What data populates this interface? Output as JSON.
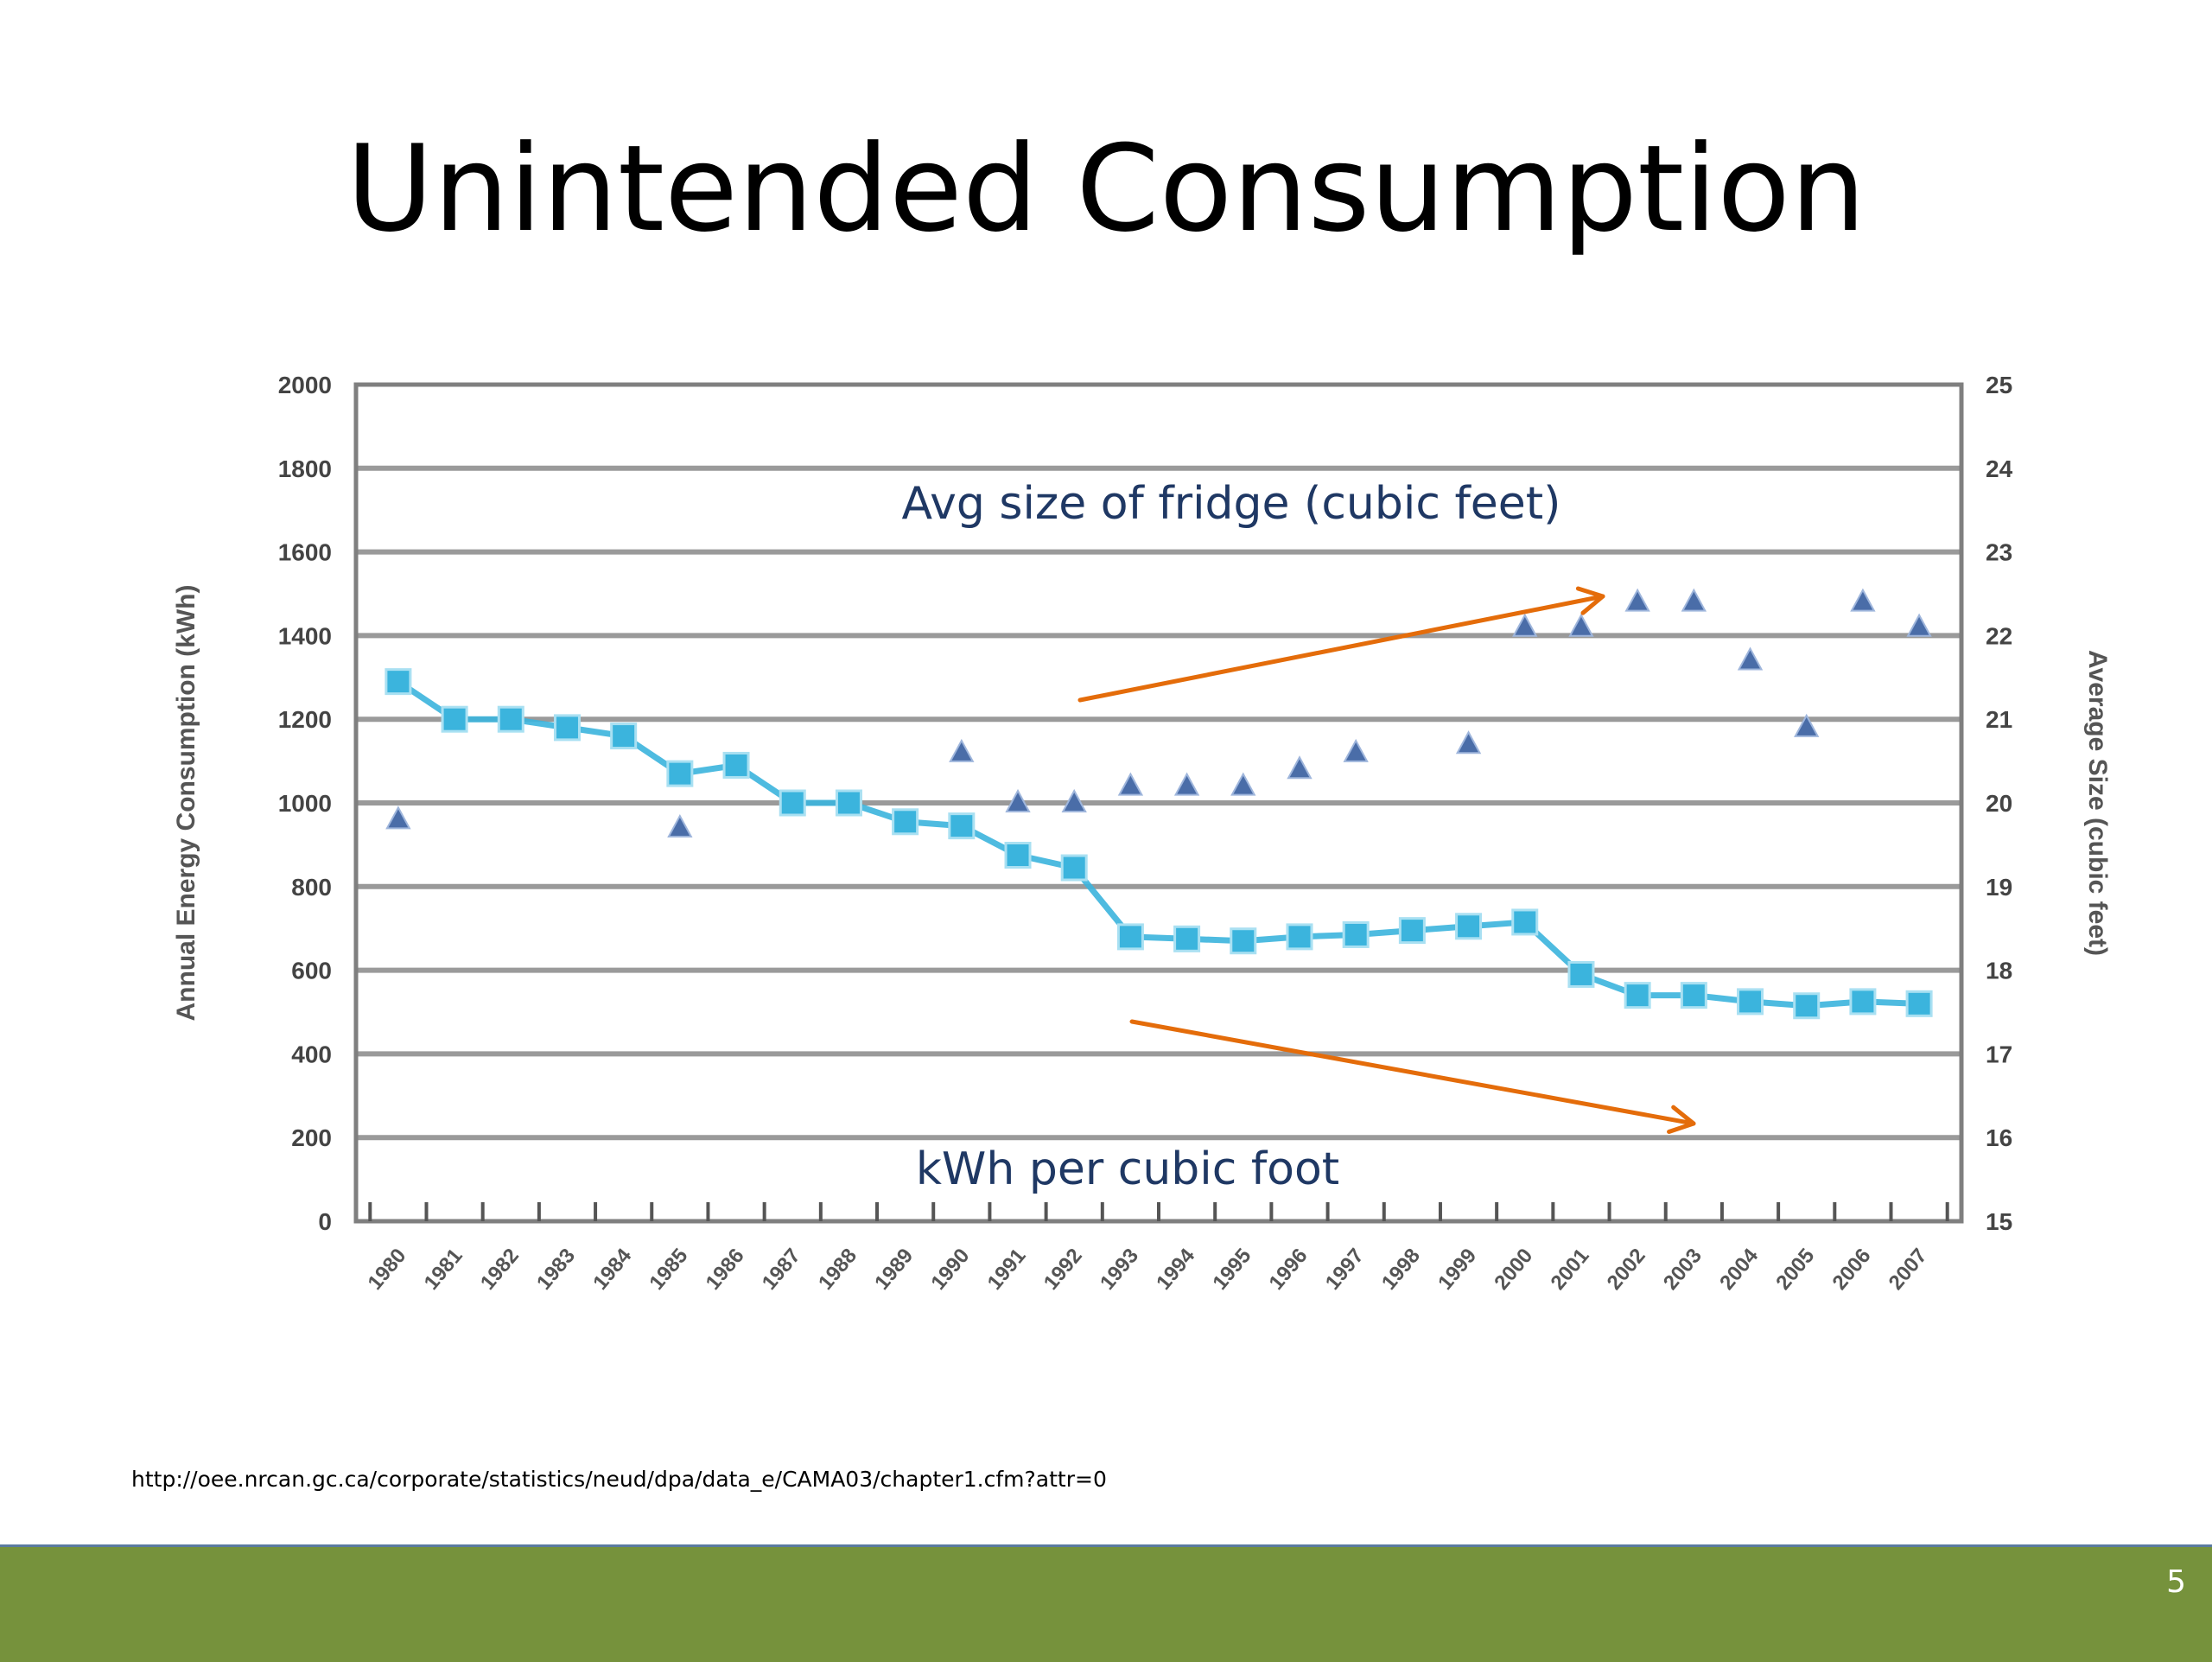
{
  "slide": {
    "title": "Unintended Consumption",
    "source": "http://oee.nrcan.gc.ca/corporate/statistics/neud/dpa/data_e/CAMA03/chapter1.cfm?attr=0",
    "page_number": "5"
  },
  "colors": {
    "footer": "#76923c",
    "kwh_series": "#3bb4dd",
    "size_series": "#4a6da8",
    "arrows": "#e46c0a",
    "annotation_text": "#1f3864",
    "grid": "#9a9a9a"
  },
  "chart_data": {
    "type": "line",
    "title": "",
    "ylabel": "Annual Energy Consumption (kWh)",
    "ylabel_right": "Average Size (cubic feet)",
    "ylim": [
      0,
      2000
    ],
    "ylim_right": [
      15,
      25
    ],
    "yticks": [
      "0",
      "200",
      "400",
      "600",
      "800",
      "1000",
      "1200",
      "1400",
      "1600",
      "1800",
      "2000"
    ],
    "yticks_right": [
      "15",
      "16",
      "17",
      "18",
      "19",
      "20",
      "21",
      "22",
      "23",
      "24",
      "25"
    ],
    "categories": [
      "1980",
      "1981",
      "1982",
      "1983",
      "1984",
      "1985",
      "1986",
      "1987",
      "1988",
      "1989",
      "1990",
      "1991",
      "1992",
      "1993",
      "1994",
      "1995",
      "1996",
      "1997",
      "1998",
      "1999",
      "2000",
      "2001",
      "2002",
      "2003",
      "2004",
      "2005",
      "2006",
      "2007"
    ],
    "grid": true,
    "series": [
      {
        "axis": "left",
        "marker": "square",
        "values": [
          1290,
          1200,
          1200,
          1180,
          1160,
          1070,
          1090,
          1000,
          1000,
          955,
          945,
          875,
          845,
          680,
          675,
          670,
          680,
          685,
          695,
          705,
          715,
          590,
          540,
          540,
          525,
          515,
          525,
          520
        ]
      },
      {
        "axis": "right",
        "marker": "triangle",
        "values": [
          19.8,
          null,
          null,
          null,
          null,
          19.7,
          null,
          null,
          null,
          null,
          20.6,
          20.0,
          20.0,
          20.2,
          20.2,
          20.2,
          20.4,
          20.6,
          null,
          20.7,
          22.1,
          22.1,
          22.4,
          22.4,
          21.7,
          20.9,
          22.4,
          22.1
        ]
      }
    ],
    "annotations": [
      {
        "id": "size",
        "text": "Avg size of fridge (cubic feet)"
      },
      {
        "id": "kwh",
        "text": "kWh per cubic foot"
      }
    ]
  }
}
